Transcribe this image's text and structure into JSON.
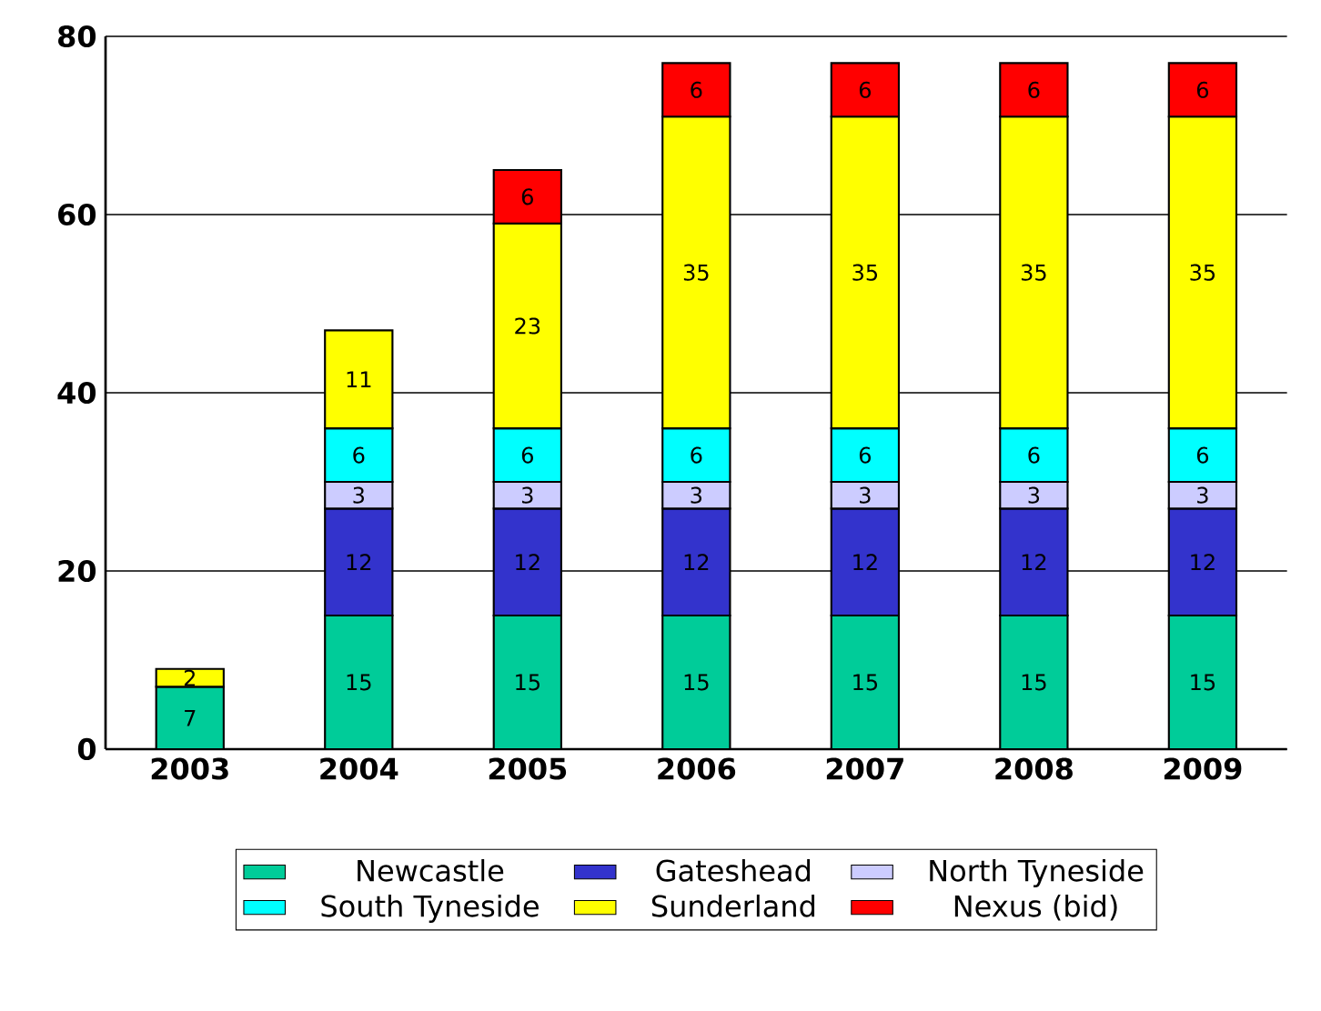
{
  "chart_data": {
    "type": "bar",
    "stacked": true,
    "categories": [
      "2003",
      "2004",
      "2005",
      "2006",
      "2007",
      "2008",
      "2009"
    ],
    "series": [
      {
        "name": "Newcastle",
        "color": "#00cc99",
        "values": [
          7,
          15,
          15,
          15,
          15,
          15,
          15
        ]
      },
      {
        "name": "Gateshead",
        "color": "#3333cc",
        "values": [
          null,
          12,
          12,
          12,
          12,
          12,
          12
        ]
      },
      {
        "name": "North Tyneside",
        "color": "#ccccff",
        "values": [
          null,
          3,
          3,
          3,
          3,
          3,
          3
        ]
      },
      {
        "name": "South Tyneside",
        "color": "#00ffff",
        "values": [
          null,
          6,
          6,
          6,
          6,
          6,
          6
        ]
      },
      {
        "name": "Sunderland",
        "color": "#ffff00",
        "values": [
          2,
          11,
          23,
          35,
          35,
          35,
          35
        ]
      },
      {
        "name": "Nexus (bid)",
        "color": "#ff0000",
        "values": [
          null,
          null,
          6,
          6,
          6,
          6,
          6
        ]
      }
    ],
    "ylim": [
      0,
      80
    ],
    "yticks": [
      0,
      20,
      40,
      60,
      80
    ],
    "grid": "y",
    "legend": "bottom",
    "data_labels": true
  }
}
